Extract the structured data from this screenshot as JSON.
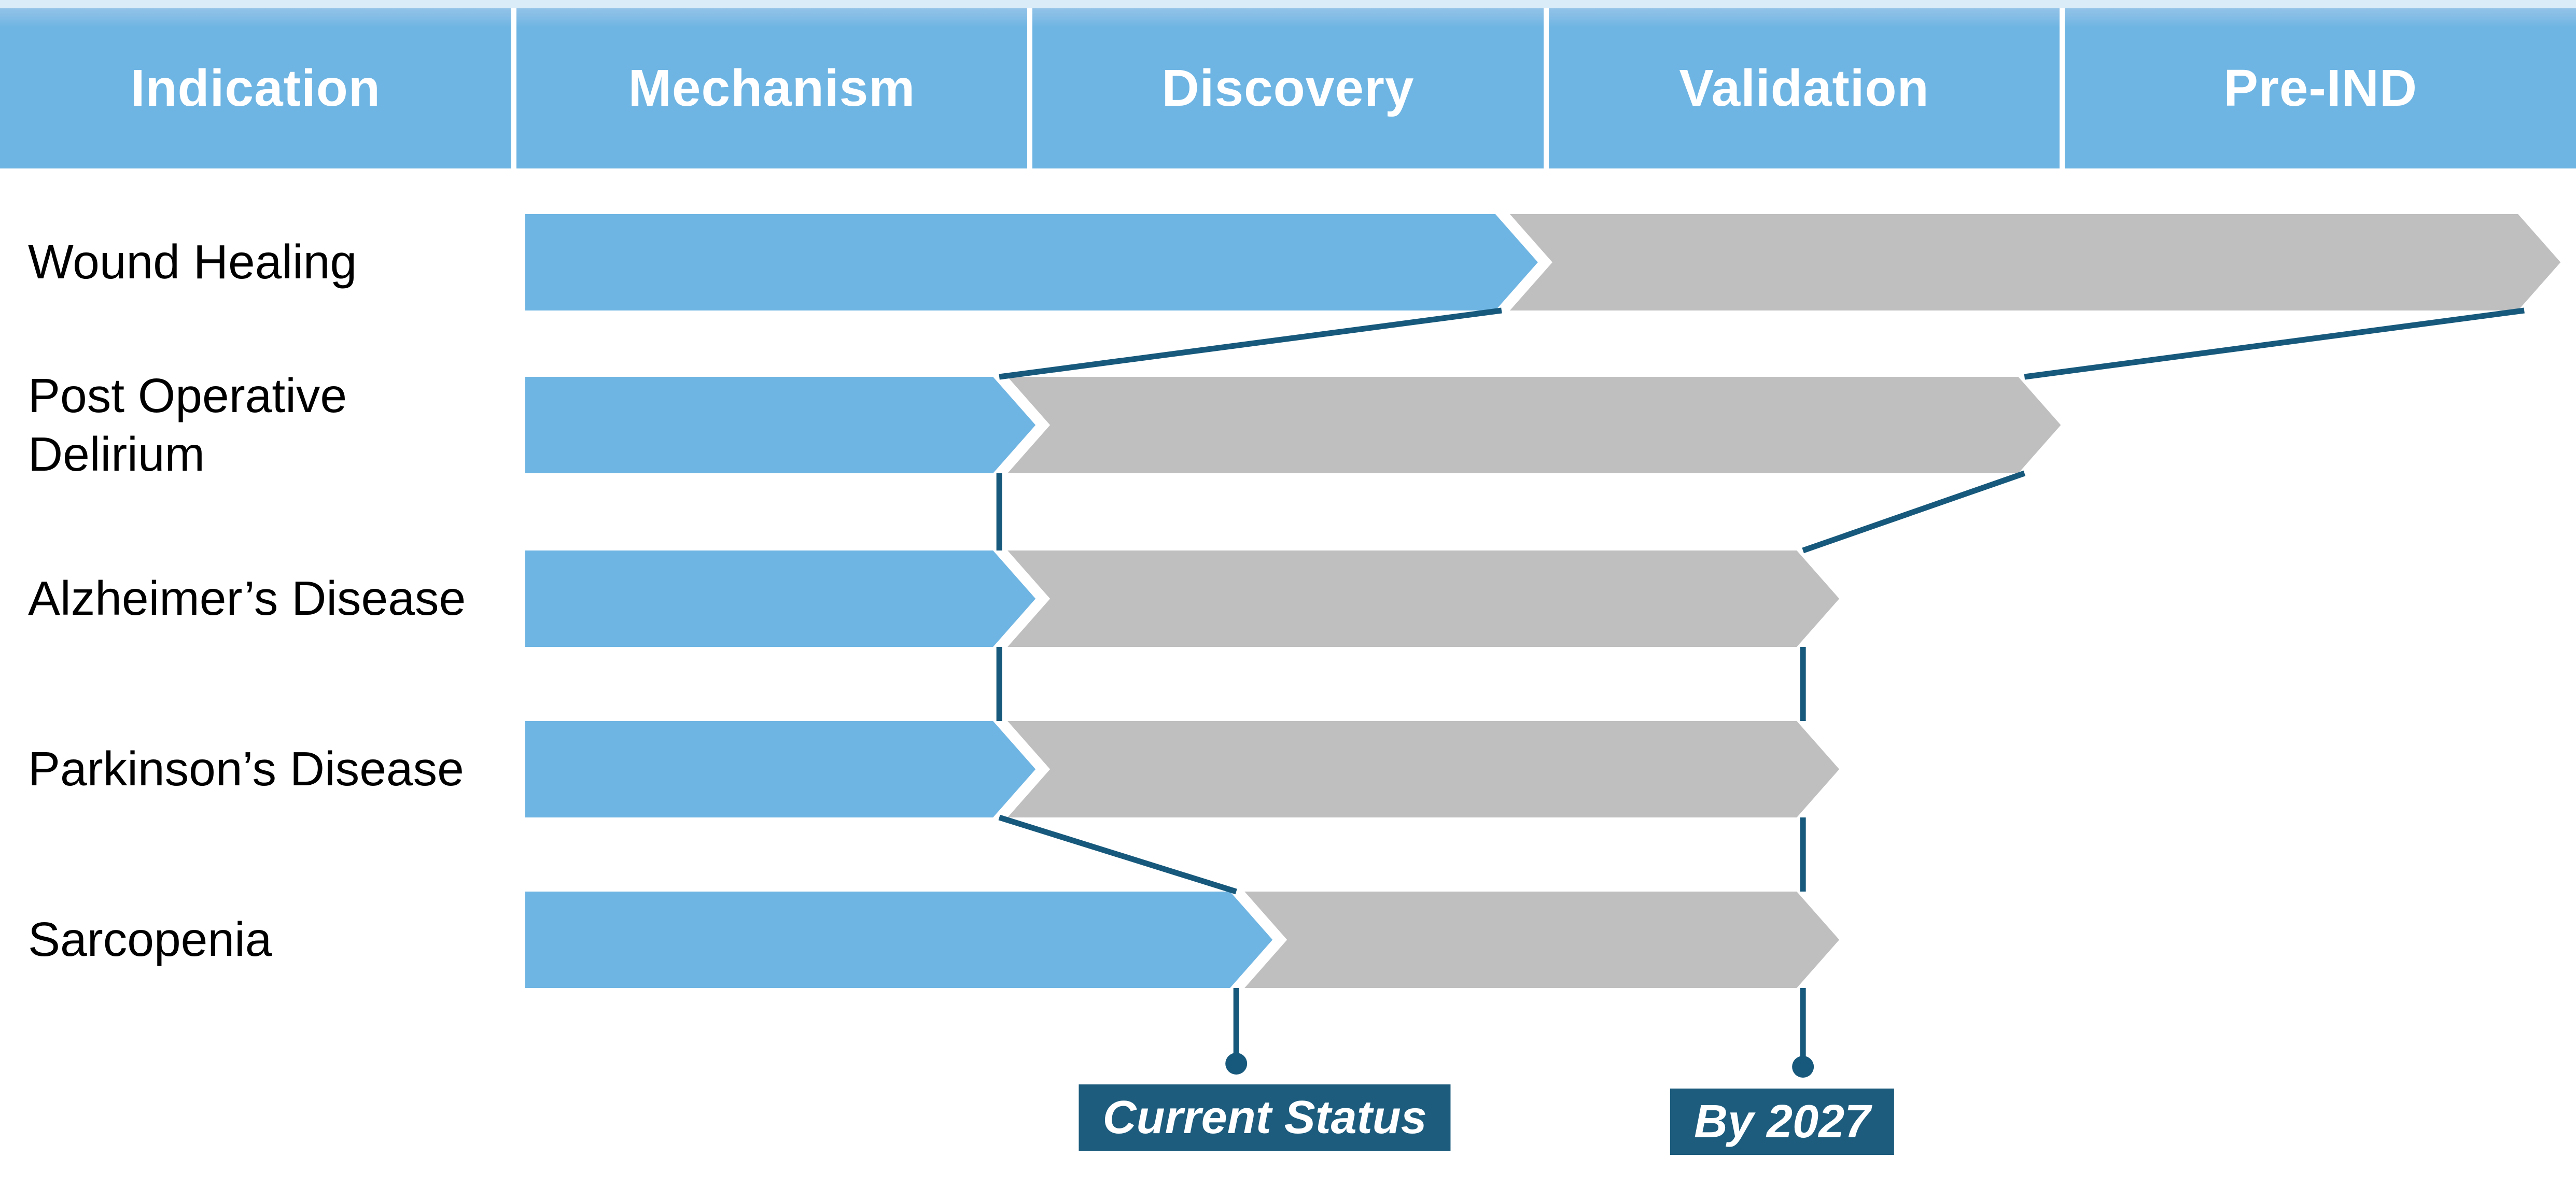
{
  "chart_data": {
    "type": "bar",
    "title": "",
    "columns": [
      "Indication",
      "Mechanism",
      "Discovery",
      "Validation",
      "Pre-IND"
    ],
    "stage_axis": {
      "min": 0,
      "max": 4,
      "unit": "pipeline stage (0 = start of Mechanism, 1 = end of Mechanism, 2 = end of Discovery, 3 = end of Validation, 4 = end of Pre-IND)",
      "grid": false
    },
    "series": [
      {
        "name": "Current Status",
        "color": "#6FB5E3"
      },
      {
        "name": "By 2027",
        "color": "#BFBFBF"
      }
    ],
    "rows": [
      {
        "indication": "Wound Healing",
        "current": 1.985,
        "by_2027": 3.97
      },
      {
        "indication": "Post Operative\nDelirium",
        "current": 1.01,
        "by_2027": 3.0
      },
      {
        "indication": "Alzheimer’s Disease",
        "current": 1.01,
        "by_2027": 2.57
      },
      {
        "indication": "Parkinson’s Disease",
        "current": 1.01,
        "by_2027": 2.57
      },
      {
        "indication": "Sarcopenia",
        "current": 1.47,
        "by_2027": 2.57
      }
    ],
    "legend": [
      {
        "id": "current-status",
        "label": "Current Status"
      },
      {
        "id": "by-2027",
        "label": "By 2027"
      }
    ],
    "legend_position": "bottom callouts anchored below Sarcopenia arrow tips",
    "colors": {
      "bar_current": "#6FB5E3",
      "bar_future": "#BFBFBF",
      "header_bg": "#6FB5E3",
      "header_top_strip": "#D9ECF8",
      "header_text": "#FFFFFF",
      "row_label_text": "#000000",
      "connector": "#17597C",
      "legend_bg": "#1D5C7D",
      "legend_text": "#FFFFFF",
      "background": "#FFFFFF"
    }
  }
}
